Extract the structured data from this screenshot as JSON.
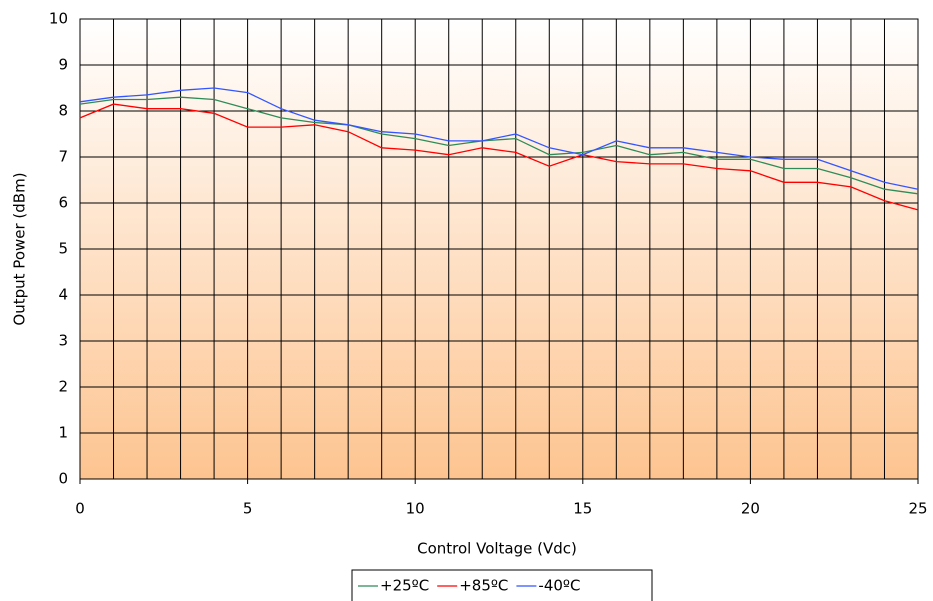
{
  "chart_data": {
    "type": "line",
    "x_label": "Control Voltage (Vdc)",
    "y_label": "Output Power (dBm)",
    "x": [
      0,
      1,
      2,
      3,
      4,
      5,
      6,
      7,
      8,
      9,
      10,
      11,
      12,
      13,
      14,
      15,
      16,
      17,
      18,
      19,
      20,
      21,
      22,
      23,
      24,
      25
    ],
    "series": [
      {
        "name": "+25ºC",
        "color": "#2e8b57",
        "values": [
          8.15,
          8.25,
          8.25,
          8.3,
          8.25,
          8.05,
          7.85,
          7.75,
          7.7,
          7.5,
          7.4,
          7.25,
          7.35,
          7.4,
          7.05,
          7.1,
          7.25,
          7.05,
          7.1,
          6.95,
          6.95,
          6.75,
          6.75,
          6.55,
          6.3,
          6.2
        ]
      },
      {
        "name": "+85ºC",
        "color": "#ff0000",
        "values": [
          7.85,
          8.15,
          8.05,
          8.05,
          7.95,
          7.65,
          7.65,
          7.7,
          7.55,
          7.2,
          7.15,
          7.05,
          7.2,
          7.1,
          6.8,
          7.05,
          6.9,
          6.85,
          6.85,
          6.75,
          6.7,
          6.45,
          6.45,
          6.35,
          6.05,
          5.85
        ]
      },
      {
        "name": "-40ºC",
        "color": "#3355ff",
        "values": [
          8.2,
          8.3,
          8.35,
          8.45,
          8.5,
          8.4,
          8.05,
          7.8,
          7.7,
          7.55,
          7.5,
          7.35,
          7.35,
          7.5,
          7.2,
          7.05,
          7.35,
          7.2,
          7.2,
          7.1,
          7.0,
          6.95,
          6.95,
          6.7,
          6.45,
          6.3
        ]
      }
    ],
    "xlim": [
      0,
      25
    ],
    "xticks": [
      0,
      5,
      10,
      15,
      20,
      25
    ],
    "ylim": [
      0,
      10
    ],
    "yticks": [
      0,
      1,
      2,
      3,
      4,
      5,
      6,
      7,
      8,
      9,
      10
    ],
    "grid": true,
    "legend": "bottom"
  }
}
